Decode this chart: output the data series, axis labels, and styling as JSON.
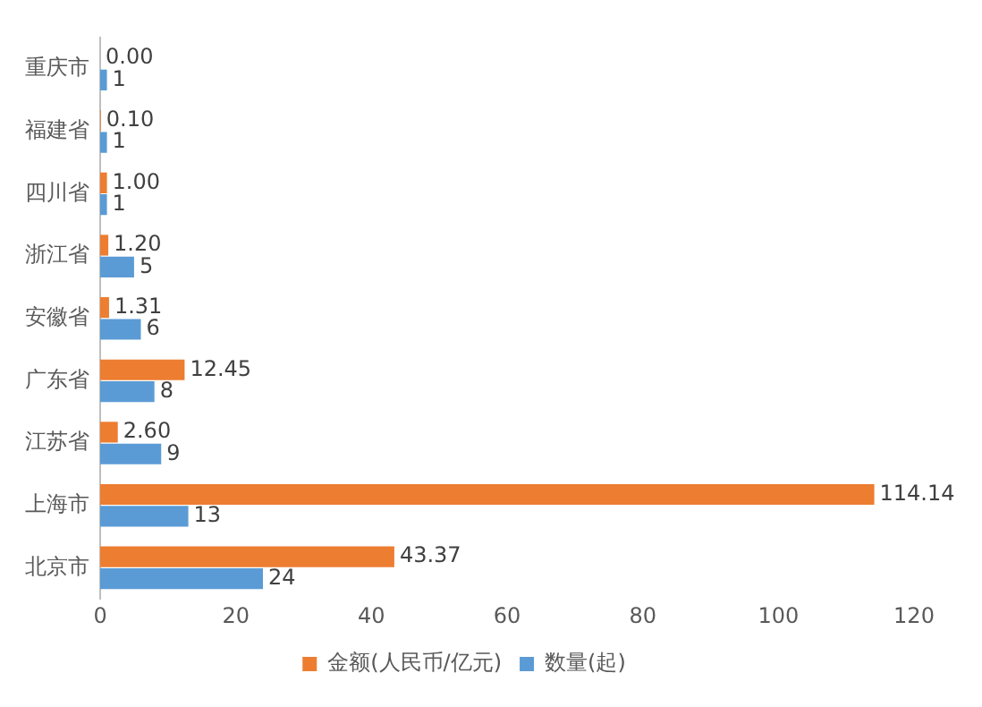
{
  "chart_data": {
    "type": "bar",
    "orientation": "horizontal",
    "categories": [
      "重庆市",
      "福建省",
      "四川省",
      "浙江省",
      "安徽省",
      "广东省",
      "江苏省",
      "上海市",
      "北京市"
    ],
    "series": [
      {
        "name": "金额(人民币/亿元)",
        "color": "#ed7d31",
        "values": [
          0,
          0.1,
          1,
          1.2,
          1.31,
          12.45,
          2.6,
          114.14,
          43.37
        ],
        "value_labels": [
          "0.00",
          "0.10",
          "1.00",
          "1.20",
          "1.31",
          "12.45",
          "2.60",
          "114.14",
          "43.37"
        ]
      },
      {
        "name": "数量(起)",
        "color": "#5b9bd5",
        "values": [
          1,
          1,
          1,
          5,
          6,
          8,
          9,
          13,
          24
        ],
        "value_labels": [
          "1",
          "1",
          "1",
          "5",
          "6",
          "8",
          "9",
          "13",
          "24"
        ]
      }
    ],
    "xlim": [
      0,
      120
    ],
    "xticks": [
      0,
      20,
      40,
      60,
      80,
      100,
      120
    ],
    "grid": false,
    "legend": "bottom"
  }
}
